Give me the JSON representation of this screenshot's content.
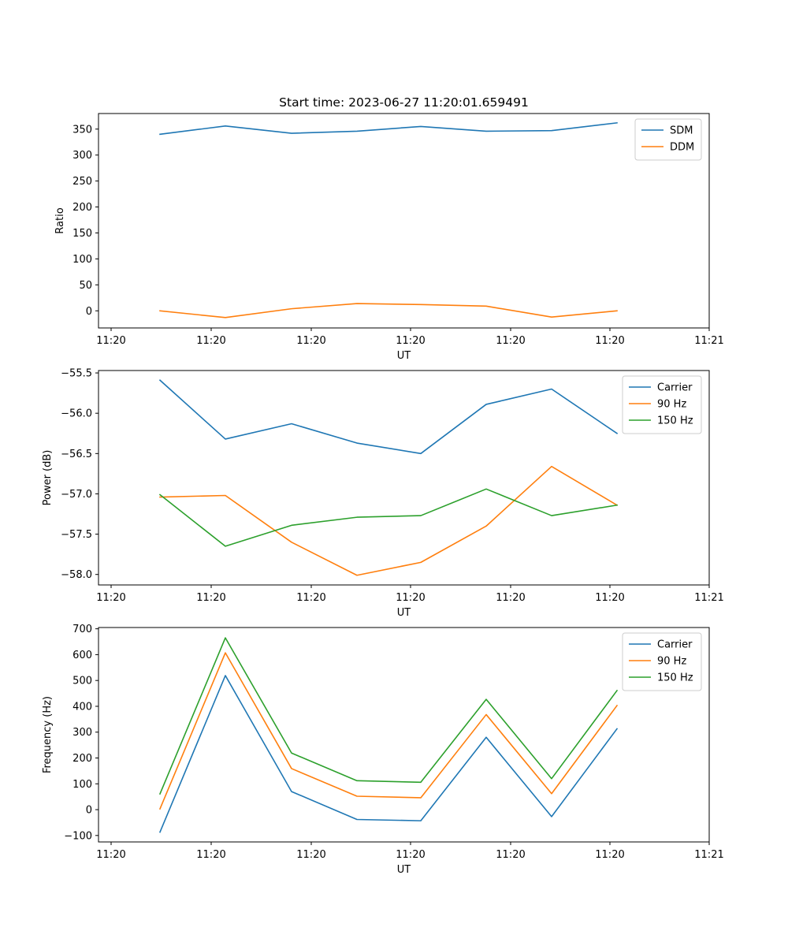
{
  "chart_data": [
    {
      "type": "line",
      "title": "Start time: 2023-06-27 11:20:01.659491",
      "xlabel": "UT",
      "ylabel": "Ratio",
      "ylim": [
        -33,
        380
      ],
      "yticks": [
        0,
        50,
        100,
        150,
        200,
        250,
        300,
        350
      ],
      "xtick_labels": [
        "11:20",
        "11:20",
        "11:20",
        "11:20",
        "11:20",
        "11:20",
        "11:20",
        "11:21"
      ],
      "legend_position": "upper-right",
      "grid": false,
      "x": [
        1,
        2,
        3,
        4,
        5,
        6,
        7,
        8
      ],
      "series": [
        {
          "name": "SDM",
          "color": "#1f77b4",
          "values": [
            340,
            356,
            342,
            346,
            355,
            346,
            347,
            362
          ]
        },
        {
          "name": "DDM",
          "color": "#ff7f0e",
          "values": [
            0,
            -13,
            4,
            14,
            12,
            9,
            -12,
            0
          ]
        }
      ]
    },
    {
      "type": "line",
      "title": "",
      "xlabel": "UT",
      "ylabel": "Power (dB)",
      "ylim": [
        -58.13,
        -55.47
      ],
      "yticks": [
        -58.0,
        -57.5,
        -57.0,
        -56.5,
        -56.0,
        -55.5
      ],
      "ytick_labels": [
        "−58.0",
        "−57.5",
        "−57.0",
        "−56.5",
        "−56.0",
        "−55.5"
      ],
      "xtick_labels": [
        "11:20",
        "11:20",
        "11:20",
        "11:20",
        "11:20",
        "11:20",
        "11:20",
        "11:21"
      ],
      "legend_position": "upper-right",
      "grid": false,
      "x": [
        1,
        2,
        3,
        4,
        5,
        6,
        7,
        8
      ],
      "series": [
        {
          "name": "Carrier",
          "color": "#1f77b4",
          "values": [
            -55.59,
            -56.32,
            -56.13,
            -56.37,
            -56.5,
            -55.89,
            -55.7,
            -56.25
          ]
        },
        {
          "name": "90 Hz",
          "color": "#ff7f0e",
          "values": [
            -57.04,
            -57.02,
            -57.6,
            -58.01,
            -57.85,
            -57.4,
            -56.66,
            -57.14
          ]
        },
        {
          "name": "150 Hz",
          "color": "#2ca02c",
          "values": [
            -57.01,
            -57.65,
            -57.39,
            -57.29,
            -57.27,
            -56.94,
            -57.27,
            -57.14
          ]
        }
      ]
    },
    {
      "type": "line",
      "title": "",
      "xlabel": "UT",
      "ylabel": "Frequency (Hz)",
      "ylim": [
        -125,
        705
      ],
      "yticks": [
        -100,
        0,
        100,
        200,
        300,
        400,
        500,
        600,
        700
      ],
      "ytick_labels": [
        "−100",
        "0",
        "100",
        "200",
        "300",
        "400",
        "500",
        "600",
        "700"
      ],
      "xtick_labels": [
        "11:20",
        "11:20",
        "11:20",
        "11:20",
        "11:20",
        "11:20",
        "11:20",
        "11:21"
      ],
      "legend_position": "upper-right",
      "grid": false,
      "x": [
        1,
        2,
        3,
        4,
        5,
        6,
        7,
        8
      ],
      "series": [
        {
          "name": "Carrier",
          "color": "#1f77b4",
          "values": [
            -87,
            519,
            70,
            -38,
            -43,
            280,
            -27,
            313
          ]
        },
        {
          "name": "90 Hz",
          "color": "#ff7f0e",
          "values": [
            3,
            607,
            159,
            52,
            46,
            368,
            62,
            403
          ]
        },
        {
          "name": "150 Hz",
          "color": "#2ca02c",
          "values": [
            61,
            665,
            219,
            112,
            106,
            427,
            120,
            461
          ]
        }
      ]
    }
  ]
}
